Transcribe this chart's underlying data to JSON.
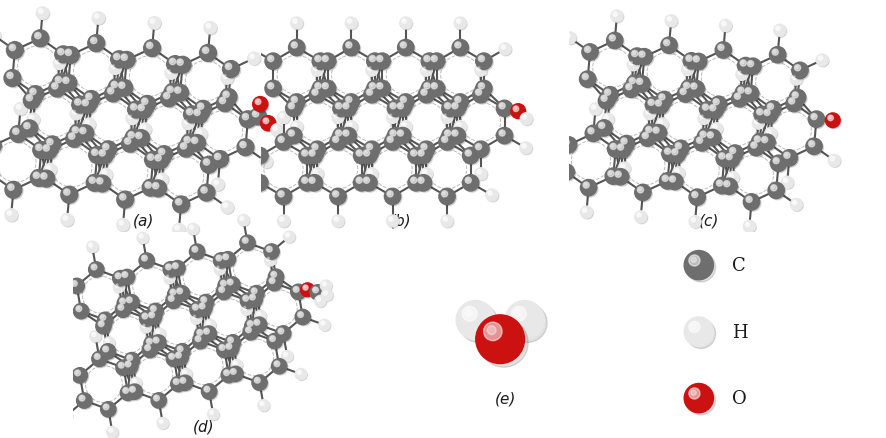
{
  "background_color": "#ffffff",
  "labels": [
    "(a)",
    "(b)",
    "(c)",
    "(d)",
    "(e)"
  ],
  "label_fontsize": 11,
  "atom_colors": {
    "C": "#6e6e6e",
    "H": "#e8e8e8",
    "O": "#cc1111"
  },
  "bond_color": "#555555",
  "title_color": "#1a1a1a",
  "legend_items": [
    "C",
    "H",
    "O"
  ],
  "ring_dash_color": "#bbbbbb"
}
